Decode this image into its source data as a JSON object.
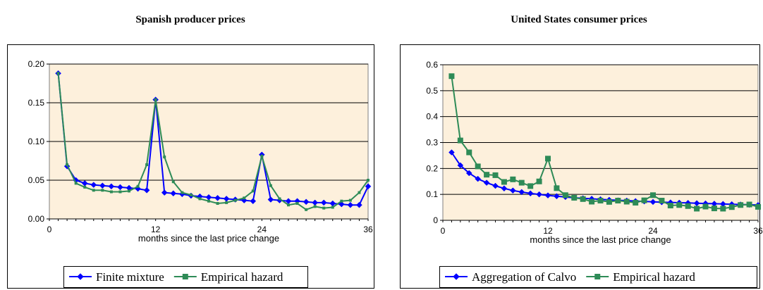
{
  "chart_data": [
    {
      "type": "line",
      "title": "Spanish producer prices",
      "xlabel": "months since the last price change",
      "ylabel": "",
      "xlim": [
        0,
        36
      ],
      "ylim": [
        0.0,
        0.2
      ],
      "x_ticks": [
        0,
        12,
        24,
        36
      ],
      "y_ticks": [
        0.0,
        0.05,
        0.1,
        0.15,
        0.2
      ],
      "y_tick_labels": [
        "0.00",
        "0.05",
        "0.10",
        "0.15",
        "0.20"
      ],
      "plot_background": "#fdf0dc",
      "grid": "horizontal",
      "legend": "bottom",
      "x": [
        1,
        2,
        3,
        4,
        5,
        6,
        7,
        8,
        9,
        10,
        11,
        12,
        13,
        14,
        15,
        16,
        17,
        18,
        19,
        20,
        21,
        22,
        23,
        24,
        25,
        26,
        27,
        28,
        29,
        30,
        31,
        32,
        33,
        34,
        35,
        36
      ],
      "series": [
        {
          "name": "Finite mixture",
          "color": "#0000ff",
          "marker": "diamond",
          "values": [
            0.188,
            0.068,
            0.05,
            0.046,
            0.044,
            0.043,
            0.042,
            0.041,
            0.04,
            0.039,
            0.037,
            0.154,
            0.034,
            0.033,
            0.032,
            0.03,
            0.029,
            0.028,
            0.027,
            0.026,
            0.025,
            0.024,
            0.023,
            0.083,
            0.025,
            0.024,
            0.023,
            0.023,
            0.022,
            0.021,
            0.021,
            0.02,
            0.019,
            0.018,
            0.018,
            0.042
          ]
        },
        {
          "name": "Empirical hazard",
          "color": "#2e8b57",
          "marker": "square",
          "values": [
            0.188,
            0.07,
            0.046,
            0.041,
            0.037,
            0.037,
            0.035,
            0.035,
            0.036,
            0.042,
            0.07,
            0.154,
            0.08,
            0.048,
            0.034,
            0.031,
            0.026,
            0.023,
            0.02,
            0.021,
            0.024,
            0.027,
            0.036,
            0.081,
            0.043,
            0.026,
            0.018,
            0.02,
            0.012,
            0.016,
            0.014,
            0.015,
            0.023,
            0.024,
            0.034,
            0.05
          ]
        }
      ]
    },
    {
      "type": "line",
      "title": "United States consumer prices",
      "xlabel": "months since the last price change",
      "ylabel": "",
      "xlim": [
        0,
        36
      ],
      "ylim": [
        0.0,
        0.6
      ],
      "x_ticks": [
        0,
        12,
        24,
        36
      ],
      "y_ticks": [
        0.0,
        0.1,
        0.2,
        0.3,
        0.4,
        0.5,
        0.6
      ],
      "y_tick_labels": [
        "0",
        "0.1",
        "0.2",
        "0.3",
        "0.4",
        "0.5",
        "0.6"
      ],
      "plot_background": "#fdf0dc",
      "grid": "horizontal",
      "legend": "bottom",
      "x": [
        1,
        2,
        3,
        4,
        5,
        6,
        7,
        8,
        9,
        10,
        11,
        12,
        13,
        14,
        15,
        16,
        17,
        18,
        19,
        20,
        21,
        22,
        23,
        24,
        25,
        26,
        27,
        28,
        29,
        30,
        31,
        32,
        33,
        34,
        35,
        36
      ],
      "series": [
        {
          "name": "Aggregation of Calvo",
          "color": "#0000ff",
          "marker": "diamond",
          "values": [
            0.262,
            0.212,
            0.182,
            0.16,
            0.145,
            0.133,
            0.123,
            0.115,
            0.109,
            0.104,
            0.1,
            0.096,
            0.093,
            0.09,
            0.087,
            0.085,
            0.083,
            0.081,
            0.079,
            0.077,
            0.076,
            0.074,
            0.073,
            0.071,
            0.07,
            0.069,
            0.068,
            0.067,
            0.066,
            0.065,
            0.064,
            0.063,
            0.062,
            0.061,
            0.06,
            0.059
          ]
        },
        {
          "name": "Empirical hazard",
          "color": "#2e8b57",
          "marker": "square",
          "values": [
            0.556,
            0.308,
            0.262,
            0.208,
            0.176,
            0.174,
            0.148,
            0.158,
            0.145,
            0.132,
            0.15,
            0.238,
            0.124,
            0.097,
            0.087,
            0.082,
            0.072,
            0.076,
            0.071,
            0.076,
            0.072,
            0.068,
            0.077,
            0.097,
            0.076,
            0.057,
            0.059,
            0.055,
            0.045,
            0.053,
            0.046,
            0.045,
            0.051,
            0.059,
            0.061,
            0.052
          ]
        }
      ]
    }
  ]
}
